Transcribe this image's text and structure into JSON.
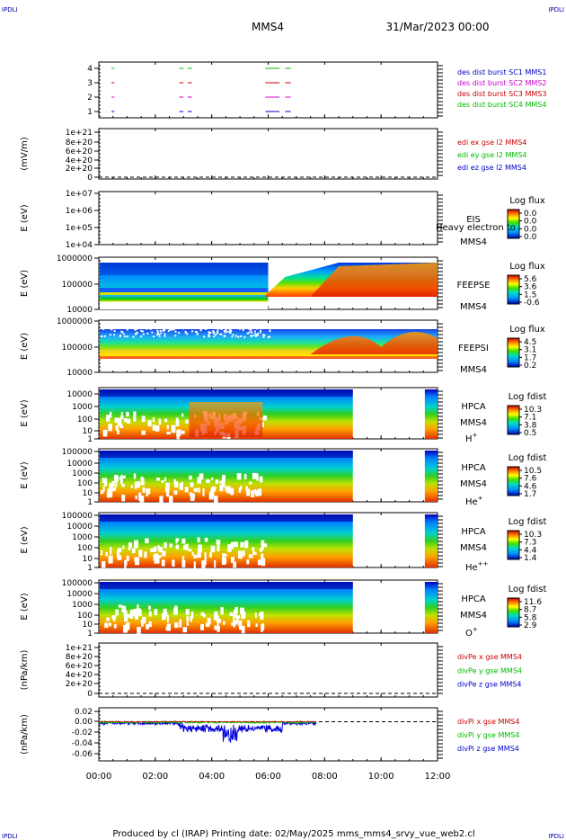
{
  "corner_labels": {
    "tl": "IPDLI",
    "tr": "IPDLI",
    "bl": "IPDLI",
    "br": "IPDLI"
  },
  "header": {
    "spacecraft": "MMS4",
    "date": "31/Mar/2023 00:00"
  },
  "footer": {
    "text": "Produced by cl (IRAP)   Printing date: 02/May/2025   mms_mms4_srvy_vue_web2.cl"
  },
  "time_axis": {
    "ticks": [
      "00:00",
      "02:00",
      "04:00",
      "06:00",
      "08:00",
      "10:00",
      "12:00"
    ],
    "range_hours": [
      0,
      12
    ]
  },
  "colors": {
    "blue": "#0000cc",
    "magenta": "#cc00cc",
    "red": "#cc0000",
    "green": "#00bb00"
  },
  "chart_data": [
    {
      "type": "timeline",
      "id": "burst",
      "yticks": [
        "4",
        "3",
        "2",
        "1"
      ],
      "legend": [
        {
          "text": "des dist burst SC1 MMS1",
          "color": "#0000cc"
        },
        {
          "text": "des dist burst SC2 MMS2",
          "color": "#cc00cc"
        },
        {
          "text": "des dist burst SC3 MMS3",
          "color": "#cc0000"
        },
        {
          "text": "des dist burst SC4 MMS4",
          "color": "#00bb00"
        }
      ],
      "segments_hours": [
        [
          0.45,
          0.55
        ],
        [
          2.85,
          3.0
        ],
        [
          3.15,
          3.3
        ],
        [
          5.9,
          6.4
        ],
        [
          6.6,
          6.8
        ]
      ]
    },
    {
      "type": "line",
      "id": "edi",
      "ylabel": "(mV/m)",
      "yticks": [
        "1e+21",
        "8e+20",
        "6e+20",
        "4e+20",
        "2e+20",
        "0"
      ],
      "legend": [
        {
          "text": "edi ex gse l2 MMS4",
          "color": "#cc0000"
        },
        {
          "text": "edi ey gse l2 MMS4",
          "color": "#00bb00"
        },
        {
          "text": "edi ez gse l2 MMS4",
          "color": "#0000cc"
        }
      ]
    },
    {
      "type": "heatmap",
      "id": "eis",
      "ylabel": "E (eV)",
      "yticks": [
        "1e+07",
        "1e+06",
        "1e+05",
        "1e+04"
      ],
      "right_labels": [
        "EIS",
        "MMS4"
      ],
      "overlay": "Heavy electron to",
      "colorbar": {
        "title": "Log flux",
        "ticks": [
          "0.0",
          "0.0",
          "0.0",
          "0.0"
        ]
      }
    },
    {
      "type": "heatmap",
      "id": "feepse",
      "ylabel": "E (eV)",
      "yticks": [
        "1000000",
        "100000",
        "10000"
      ],
      "right_labels": [
        "FEEPSE",
        "MMS4"
      ],
      "colorbar": {
        "title": "Log flux",
        "ticks": [
          "5.6",
          "3.6",
          "1.5",
          "-0.6"
        ]
      }
    },
    {
      "type": "heatmap",
      "id": "feepsi",
      "ylabel": "E (eV)",
      "yticks": [
        "1000000",
        "100000",
        "10000"
      ],
      "right_labels": [
        "FEEPSI",
        "MMS4"
      ],
      "colorbar": {
        "title": "Log flux",
        "ticks": [
          "4.5",
          "3.1",
          "1.7",
          "0.2"
        ]
      }
    },
    {
      "type": "heatmap",
      "id": "hpca_h",
      "ylabel": "E (eV)",
      "yticks": [
        "10000",
        "1000",
        "100",
        "10",
        "1"
      ],
      "right_labels": [
        "HPCA",
        "MMS4"
      ],
      "species": "H",
      "species_sup": "+",
      "colorbar": {
        "title": "Log fdist",
        "ticks": [
          "10.3",
          "7.1",
          "3.8",
          "0.5"
        ]
      }
    },
    {
      "type": "heatmap",
      "id": "hpca_he",
      "ylabel": "E (eV)",
      "yticks": [
        "100000",
        "10000",
        "1000",
        "100",
        "10",
        "1"
      ],
      "right_labels": [
        "HPCA",
        "MMS4"
      ],
      "species": "He",
      "species_sup": "+",
      "colorbar": {
        "title": "Log fdist",
        "ticks": [
          "10.5",
          "7.6",
          "4.6",
          "1.7"
        ]
      }
    },
    {
      "type": "heatmap",
      "id": "hpca_hepp",
      "ylabel": "E (eV)",
      "yticks": [
        "100000",
        "10000",
        "1000",
        "100",
        "10",
        "1"
      ],
      "right_labels": [
        "HPCA",
        "MMS4"
      ],
      "species": "He",
      "species_sup": "++",
      "colorbar": {
        "title": "Log fdist",
        "ticks": [
          "10.3",
          "7.3",
          "4.4",
          "1.4"
        ]
      }
    },
    {
      "type": "heatmap",
      "id": "hpca_o",
      "ylabel": "E (eV)",
      "yticks": [
        "100000",
        "10000",
        "1000",
        "100",
        "10",
        "1"
      ],
      "right_labels": [
        "HPCA",
        "MMS4"
      ],
      "species": "O",
      "species_sup": "+",
      "colorbar": {
        "title": "Log fdist",
        "ticks": [
          "11.6",
          "8.7",
          "5.8",
          "2.9"
        ]
      }
    },
    {
      "type": "line",
      "id": "divpe",
      "ylabel": "(nPa/km)",
      "yticks": [
        "1e+21",
        "8e+20",
        "6e+20",
        "4e+20",
        "2e+20",
        "0"
      ],
      "legend": [
        {
          "text": "divPe x gse MMS4",
          "color": "#cc0000"
        },
        {
          "text": "divPe y gse MMS4",
          "color": "#00bb00"
        },
        {
          "text": "divPe z gse MMS4",
          "color": "#0000cc"
        }
      ]
    },
    {
      "type": "line",
      "id": "divpi",
      "ylabel": "(nPa/km)",
      "yticks": [
        "0.02",
        "0.00",
        "-0.02",
        "-0.04",
        "-0.06"
      ],
      "ylim": [
        -0.07,
        0.025
      ],
      "legend": [
        {
          "text": "divPi x gse MMS4",
          "color": "#cc0000"
        },
        {
          "text": "divPi y gse MMS4",
          "color": "#00bb00"
        },
        {
          "text": "divPi z gse MMS4",
          "color": "#0000cc"
        }
      ],
      "data_span_hours": [
        0,
        7.7
      ]
    }
  ]
}
